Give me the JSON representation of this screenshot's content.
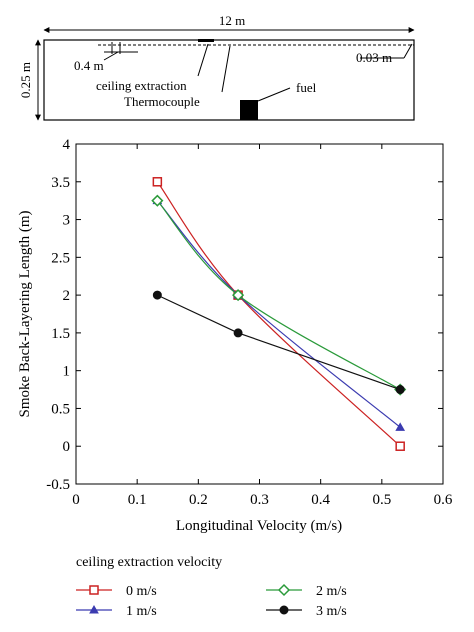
{
  "diagram": {
    "length_label": "12 m",
    "height_label": "0.25 m",
    "spacing_label": "0.4 m",
    "gap_label": "0.03 m",
    "extraction_label": "ceiling extraction",
    "thermocouple_label": "Thermocouple",
    "fuel_label": "fuel"
  },
  "chart_data": {
    "type": "line",
    "title": "",
    "xlabel": "Longitudinal Velocity (m/s)",
    "ylabel": "Smoke Back-Layering Length (m)",
    "xlim": [
      0,
      0.6
    ],
    "ylim": [
      -0.5,
      4
    ],
    "xticks": [
      "0",
      "0.1",
      "0.2",
      "0.3",
      "0.4",
      "0.5",
      "0.6"
    ],
    "yticks": [
      "-0.5",
      "0",
      "0.5",
      "1",
      "1.5",
      "2",
      "2.5",
      "3",
      "3.5",
      "4"
    ],
    "grid": false,
    "legend_title": "ceiling extraction velocity",
    "legend_placement": "below",
    "series": [
      {
        "name": "0 m/s",
        "color": "#cc2222",
        "marker": "open-square",
        "x": [
          0.133,
          0.265,
          0.53
        ],
        "y": [
          3.5,
          2.0,
          0.0
        ]
      },
      {
        "name": "1 m/s",
        "color": "#3b3bb0",
        "marker": "filled-triangle",
        "x": [
          0.133,
          0.265,
          0.53
        ],
        "y": [
          3.25,
          2.0,
          0.25
        ]
      },
      {
        "name": "2 m/s",
        "color": "#2a9a3a",
        "marker": "open-diamond",
        "x": [
          0.133,
          0.265,
          0.53
        ],
        "y": [
          3.25,
          2.0,
          0.75
        ]
      },
      {
        "name": "3 m/s",
        "color": "#111111",
        "marker": "filled-circle",
        "x": [
          0.133,
          0.265,
          0.53
        ],
        "y": [
          2.0,
          1.5,
          0.75
        ]
      }
    ]
  }
}
